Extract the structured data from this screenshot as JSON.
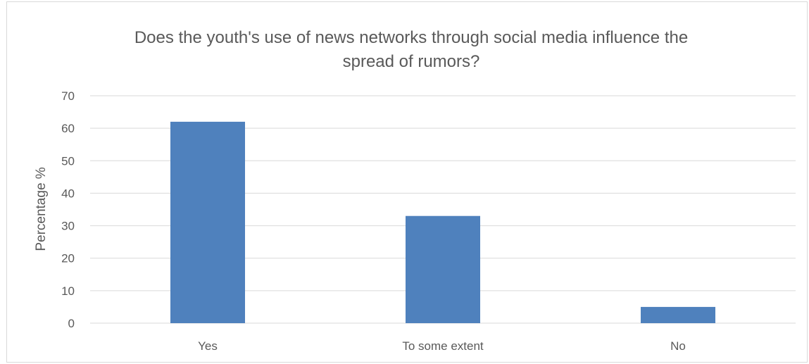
{
  "chart_data": {
    "type": "bar",
    "title_lines": [
      "Does the youth's use of news networks through social media influence the",
      "spread of rumors?"
    ],
    "xlabel": "",
    "ylabel": "Percentage %",
    "categories": [
      "Yes",
      "To some extent",
      "No"
    ],
    "values": [
      62,
      33,
      5
    ],
    "ylim": [
      0,
      70
    ],
    "yticks": [
      0,
      10,
      20,
      30,
      40,
      50,
      60,
      70
    ],
    "grid": true,
    "legend": "none",
    "bar_color": "#4f81bd",
    "grid_color": "#d9d9d9",
    "text_color": "#595959"
  }
}
